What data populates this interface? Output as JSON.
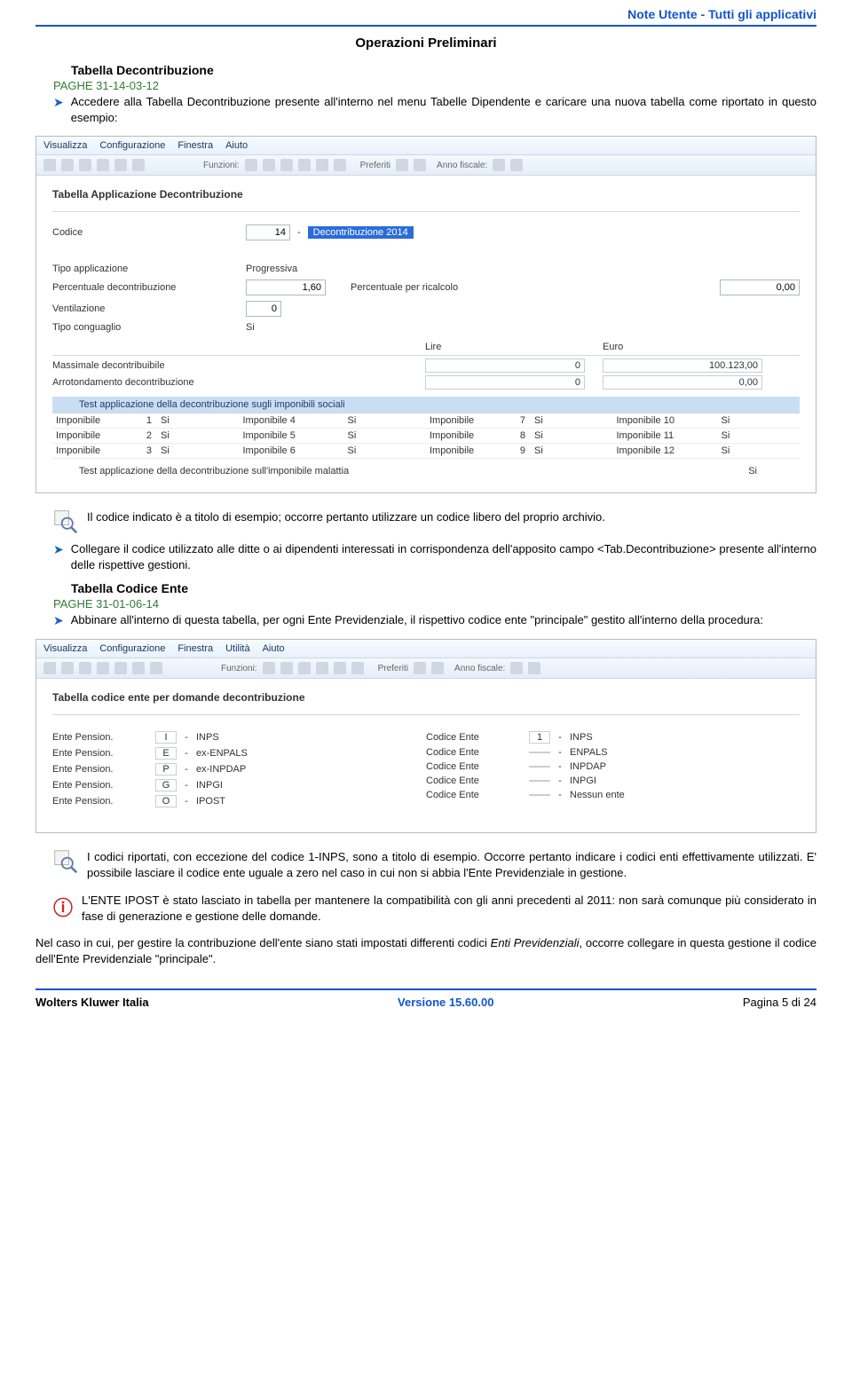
{
  "header": {
    "note": "Note  Utente -  Tutti gli applicativi"
  },
  "title_center": "Operazioni Preliminari",
  "sec1": {
    "title": "Tabella Decontribuzione",
    "code": "PAGHE 31-14-03-12",
    "bullet1": "Accedere alla Tabella Decontribuzione presente all'interno nel menu Tabelle Dipendente e caricare una nuova tabella come riportato in questo esempio:"
  },
  "shot1": {
    "menubar": [
      "Visualizza",
      "Configurazione",
      "Finestra",
      "Aiuto"
    ],
    "toolbar_mid": "Funzioni:",
    "toolbar_right": [
      "Preferiti",
      "Anno fiscale:"
    ],
    "heading": "Tabella Applicazione Decontribuzione",
    "codice_label": "Codice",
    "codice_value": "14",
    "codice_desc": "Decontribuzione 2014",
    "rows": [
      {
        "label": "Tipo applicazione",
        "val1": "Progressiva"
      },
      {
        "label": "Percentuale decontribuzione",
        "val1": "1,60",
        "mid_label": "Percentuale per ricalcolo",
        "right": "0,00"
      },
      {
        "label": "Ventilazione",
        "val1": "0"
      },
      {
        "label": "Tipo conguaglio",
        "val1": "Si"
      }
    ],
    "lire": "Lire",
    "euro": "Euro",
    "valrows": [
      {
        "label": "Massimale decontribuibile",
        "lire": "0",
        "euro": "100.123,00"
      },
      {
        "label": "Arrotondamento decontribuzione",
        "lire": "0",
        "euro": "0,00"
      }
    ],
    "band": "Test applicazione della decontribuzione sugli imponibili sociali",
    "imp_label": "Imponibile",
    "imp_si": "Si",
    "imp_labels_ext": [
      "Imponibile 4",
      "Imponibile 5",
      "Imponibile 6",
      "Imponibile 10",
      "Imponibile 11",
      "Imponibile 12"
    ],
    "imp_nums_a": [
      "1",
      "2",
      "3"
    ],
    "imp_nums_b": [
      "7",
      "8",
      "9"
    ],
    "test_malattia": "Test applicazione della decontribuzione sull'imponibile malattia",
    "test_malattia_val": "Si"
  },
  "note1": "Il codice indicato è a titolo di esempio; occorre pertanto utilizzare un codice libero del proprio archivio.",
  "bullet2": "Collegare il codice utilizzato alle ditte o ai dipendenti interessati in corrispondenza dell'apposito campo <Tab.Decontribuzione> presente all'interno delle rispettive gestioni.",
  "sec2": {
    "title": "Tabella Codice Ente",
    "code": "PAGHE 31-01-06-14",
    "bullet": "Abbinare all'interno di questa tabella, per ogni Ente Previdenziale, il rispettivo codice ente \"principale\" gestito all'interno della procedura:"
  },
  "shot2": {
    "menubar": [
      "Visualizza",
      "Configurazione",
      "Finestra",
      "Utilità",
      "Aiuto"
    ],
    "heading": "Tabella codice ente per domande decontribuzione",
    "left_label": "Ente Pension.",
    "right_label": "Codice Ente",
    "left": [
      {
        "code": "I",
        "desc": "INPS"
      },
      {
        "code": "E",
        "desc": "ex-ENPALS"
      },
      {
        "code": "P",
        "desc": "ex-INPDAP"
      },
      {
        "code": "G",
        "desc": "INPGI"
      },
      {
        "code": "O",
        "desc": "IPOST"
      }
    ],
    "right": [
      {
        "code": "1",
        "desc": "INPS"
      },
      {
        "code": "",
        "desc": "ENPALS"
      },
      {
        "code": "",
        "desc": "INPDAP"
      },
      {
        "code": "",
        "desc": "INPGI"
      },
      {
        "code": "",
        "desc": "Nessun ente"
      }
    ]
  },
  "note2": "I codici riportati, con eccezione del codice 1-INPS, sono a titolo di esempio. Occorre pertanto indicare i codici enti effettivamente utilizzati. E' possibile lasciare il codice ente uguale a zero nel caso in cui non si abbia l'Ente Previdenziale in gestione.",
  "info1": "L'ENTE IPOST è stato lasciato in tabella per mantenere la compatibilità con gli anni precedenti al 2011: non sarà comunque più considerato in fase di generazione e gestione delle domande.",
  "para_final_a": "Nel caso in cui, per gestire la contribuzione dell'ente siano stati impostati differenti codici ",
  "para_final_em": "Enti Previdenziali",
  "para_final_b": ", occorre collegare in questa gestione il codice dell'Ente Previdenziale \"principale\".",
  "footer": {
    "brand": "Wolters Kluwer Italia",
    "ver": "Versione  15.60.00",
    "page": "Pagina  5 di 24"
  }
}
